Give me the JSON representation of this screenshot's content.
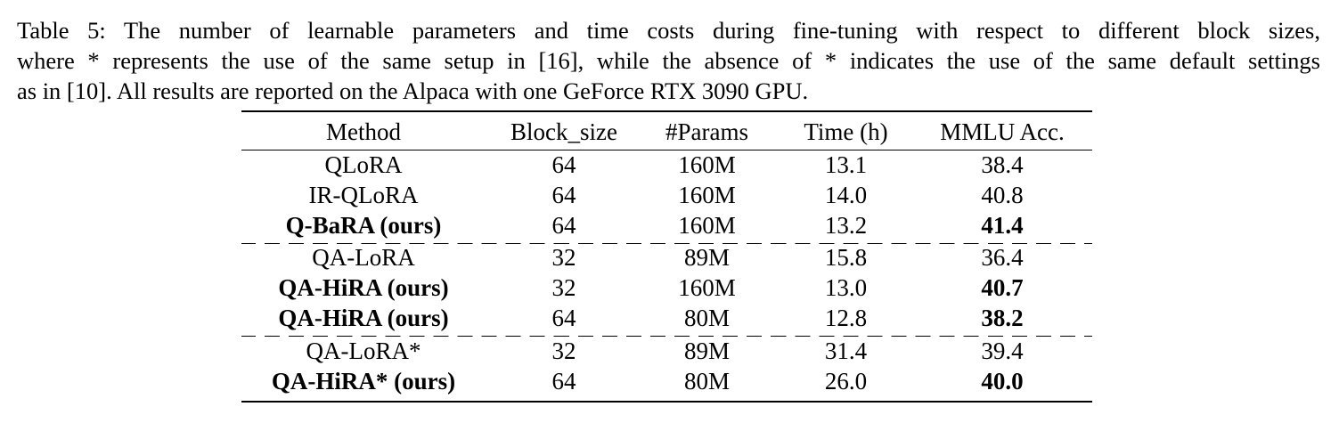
{
  "caption": {
    "line1": "Table 5: The number of learnable parameters and time costs during fine-tuning with respect to different block sizes,",
    "line2": "where * represents the use of the same setup in [16], while the absence of * indicates the use of the same default settings",
    "line3": "as in [10]. All results are reported on the Alpaca with one GeForce RTX 3090 GPU."
  },
  "table": {
    "headers": [
      "Method",
      "Block_size",
      "#Params",
      "Time (h)",
      "MMLU Acc."
    ],
    "rows": [
      {
        "method": "QLoRA",
        "block_size": "64",
        "params": "160M",
        "time": "13.1",
        "acc": "38.4"
      },
      {
        "method": "IR-QLoRA",
        "block_size": "64",
        "params": "160M",
        "time": "14.0",
        "acc": "40.8"
      },
      {
        "method": "Q-BaRA (ours)",
        "block_size": "64",
        "params": "160M",
        "time": "13.2",
        "acc": "41.4"
      },
      {
        "method": "QA-LoRA",
        "block_size": "32",
        "params": "89M",
        "time": "15.8",
        "acc": "36.4"
      },
      {
        "method": "QA-HiRA (ours)",
        "block_size": "32",
        "params": "160M",
        "time": "13.0",
        "acc": "40.7"
      },
      {
        "method": "QA-HiRA (ours)",
        "block_size": "64",
        "params": "80M",
        "time": "12.8",
        "acc": "38.2"
      },
      {
        "method": "QA-LoRA*",
        "block_size": "32",
        "params": "89M",
        "time": "31.4",
        "acc": "39.4"
      },
      {
        "method": "QA-HiRA* (ours)",
        "block_size": "64",
        "params": "80M",
        "time": "26.0",
        "acc": "40.0"
      }
    ]
  }
}
